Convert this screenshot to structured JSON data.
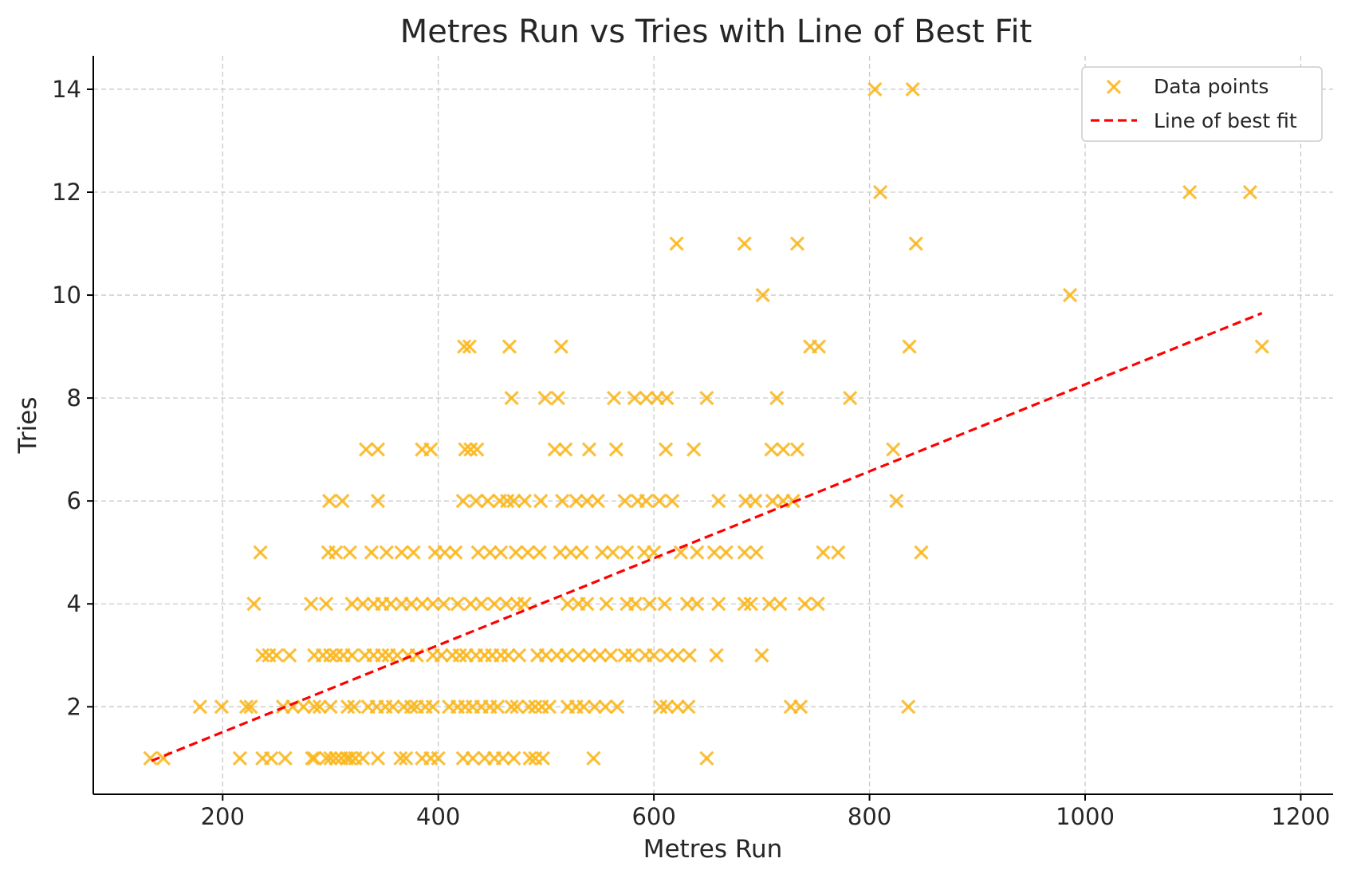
{
  "chart_data": {
    "type": "scatter",
    "title": "Metres Run vs Tries with Line of Best Fit",
    "xlabel": "Metres Run",
    "ylabel": "Tries",
    "xlim": [
      80,
      1230
    ],
    "ylim": [
      0.3,
      14.65
    ],
    "xticks": [
      200,
      400,
      600,
      800,
      1000,
      1200
    ],
    "yticks": [
      2,
      4,
      6,
      8,
      10,
      12,
      14
    ],
    "grid": true,
    "legend_position": "top-right",
    "colors": {
      "points": "#fbb619",
      "fit": "#ff0000"
    },
    "series": [
      {
        "name": "Data points",
        "marker": "x",
        "points": [
          [
            133,
            1
          ],
          [
            145,
            1
          ],
          [
            216,
            1
          ],
          [
            237,
            1
          ],
          [
            245,
            1
          ],
          [
            258,
            1
          ],
          [
            283,
            1
          ],
          [
            285,
            1
          ],
          [
            296,
            1
          ],
          [
            300,
            1
          ],
          [
            305,
            1
          ],
          [
            310,
            1
          ],
          [
            315,
            1
          ],
          [
            318,
            1
          ],
          [
            323,
            1
          ],
          [
            330,
            1
          ],
          [
            344,
            1
          ],
          [
            365,
            1
          ],
          [
            370,
            1
          ],
          [
            385,
            1
          ],
          [
            393,
            1
          ],
          [
            400,
            1
          ],
          [
            423,
            1
          ],
          [
            432,
            1
          ],
          [
            443,
            1
          ],
          [
            452,
            1
          ],
          [
            460,
            1
          ],
          [
            470,
            1
          ],
          [
            485,
            1
          ],
          [
            490,
            1
          ],
          [
            497,
            1
          ],
          [
            544,
            1
          ],
          [
            649,
            1
          ],
          [
            179,
            2
          ],
          [
            199,
            2
          ],
          [
            222,
            2
          ],
          [
            226,
            2
          ],
          [
            256,
            2
          ],
          [
            265,
            2
          ],
          [
            275,
            2
          ],
          [
            285,
            2
          ],
          [
            290,
            2
          ],
          [
            300,
            2
          ],
          [
            316,
            2
          ],
          [
            322,
            2
          ],
          [
            335,
            2
          ],
          [
            343,
            2
          ],
          [
            351,
            2
          ],
          [
            358,
            2
          ],
          [
            368,
            2
          ],
          [
            375,
            2
          ],
          [
            380,
            2
          ],
          [
            388,
            2
          ],
          [
            395,
            2
          ],
          [
            410,
            2
          ],
          [
            418,
            2
          ],
          [
            425,
            2
          ],
          [
            432,
            2
          ],
          [
            440,
            2
          ],
          [
            448,
            2
          ],
          [
            455,
            2
          ],
          [
            468,
            2
          ],
          [
            473,
            2
          ],
          [
            484,
            2
          ],
          [
            490,
            2
          ],
          [
            496,
            2
          ],
          [
            503,
            2
          ],
          [
            520,
            2
          ],
          [
            528,
            2
          ],
          [
            535,
            2
          ],
          [
            545,
            2
          ],
          [
            555,
            2
          ],
          [
            566,
            2
          ],
          [
            606,
            2
          ],
          [
            612,
            2
          ],
          [
            622,
            2
          ],
          [
            632,
            2
          ],
          [
            727,
            2
          ],
          [
            736,
            2
          ],
          [
            836,
            2
          ],
          [
            237,
            3
          ],
          [
            243,
            3
          ],
          [
            250,
            3
          ],
          [
            262,
            3
          ],
          [
            285,
            3
          ],
          [
            293,
            3
          ],
          [
            300,
            3
          ],
          [
            305,
            3
          ],
          [
            312,
            3
          ],
          [
            320,
            3
          ],
          [
            332,
            3
          ],
          [
            340,
            3
          ],
          [
            348,
            3
          ],
          [
            354,
            3
          ],
          [
            362,
            3
          ],
          [
            372,
            3
          ],
          [
            380,
            3
          ],
          [
            395,
            3
          ],
          [
            403,
            3
          ],
          [
            413,
            3
          ],
          [
            420,
            3
          ],
          [
            426,
            3
          ],
          [
            435,
            3
          ],
          [
            443,
            3
          ],
          [
            450,
            3
          ],
          [
            458,
            3
          ],
          [
            465,
            3
          ],
          [
            475,
            3
          ],
          [
            492,
            3
          ],
          [
            500,
            3
          ],
          [
            510,
            3
          ],
          [
            519,
            3
          ],
          [
            530,
            3
          ],
          [
            540,
            3
          ],
          [
            550,
            3
          ],
          [
            560,
            3
          ],
          [
            573,
            3
          ],
          [
            580,
            3
          ],
          [
            592,
            3
          ],
          [
            600,
            3
          ],
          [
            612,
            3
          ],
          [
            622,
            3
          ],
          [
            633,
            3
          ],
          [
            658,
            3
          ],
          [
            700,
            3
          ],
          [
            229,
            4
          ],
          [
            282,
            4
          ],
          [
            296,
            4
          ],
          [
            320,
            4
          ],
          [
            330,
            4
          ],
          [
            340,
            4
          ],
          [
            348,
            4
          ],
          [
            356,
            4
          ],
          [
            366,
            4
          ],
          [
            375,
            4
          ],
          [
            385,
            4
          ],
          [
            395,
            4
          ],
          [
            405,
            4
          ],
          [
            418,
            4
          ],
          [
            430,
            4
          ],
          [
            440,
            4
          ],
          [
            452,
            4
          ],
          [
            463,
            4
          ],
          [
            473,
            4
          ],
          [
            480,
            4
          ],
          [
            520,
            4
          ],
          [
            530,
            4
          ],
          [
            538,
            4
          ],
          [
            556,
            4
          ],
          [
            575,
            4
          ],
          [
            583,
            4
          ],
          [
            596,
            4
          ],
          [
            610,
            4
          ],
          [
            631,
            4
          ],
          [
            640,
            4
          ],
          [
            660,
            4
          ],
          [
            684,
            4
          ],
          [
            690,
            4
          ],
          [
            707,
            4
          ],
          [
            717,
            4
          ],
          [
            740,
            4
          ],
          [
            752,
            4
          ],
          [
            235,
            5
          ],
          [
            298,
            5
          ],
          [
            305,
            5
          ],
          [
            318,
            5
          ],
          [
            338,
            5
          ],
          [
            352,
            5
          ],
          [
            366,
            5
          ],
          [
            377,
            5
          ],
          [
            397,
            5
          ],
          [
            406,
            5
          ],
          [
            416,
            5
          ],
          [
            437,
            5
          ],
          [
            448,
            5
          ],
          [
            458,
            5
          ],
          [
            472,
            5
          ],
          [
            483,
            5
          ],
          [
            494,
            5
          ],
          [
            513,
            5
          ],
          [
            523,
            5
          ],
          [
            533,
            5
          ],
          [
            552,
            5
          ],
          [
            562,
            5
          ],
          [
            575,
            5
          ],
          [
            591,
            5
          ],
          [
            600,
            5
          ],
          [
            625,
            5
          ],
          [
            640,
            5
          ],
          [
            656,
            5
          ],
          [
            667,
            5
          ],
          [
            684,
            5
          ],
          [
            695,
            5
          ],
          [
            757,
            5
          ],
          [
            771,
            5
          ],
          [
            848,
            5
          ],
          [
            299,
            6
          ],
          [
            311,
            6
          ],
          [
            344,
            6
          ],
          [
            423,
            6
          ],
          [
            435,
            6
          ],
          [
            446,
            6
          ],
          [
            457,
            6
          ],
          [
            464,
            6
          ],
          [
            470,
            6
          ],
          [
            480,
            6
          ],
          [
            495,
            6
          ],
          [
            515,
            6
          ],
          [
            528,
            6
          ],
          [
            538,
            6
          ],
          [
            548,
            6
          ],
          [
            573,
            6
          ],
          [
            585,
            6
          ],
          [
            593,
            6
          ],
          [
            605,
            6
          ],
          [
            617,
            6
          ],
          [
            660,
            6
          ],
          [
            685,
            6
          ],
          [
            694,
            6
          ],
          [
            710,
            6
          ],
          [
            720,
            6
          ],
          [
            729,
            6
          ],
          [
            825,
            6
          ],
          [
            333,
            7
          ],
          [
            344,
            7
          ],
          [
            385,
            7
          ],
          [
            393,
            7
          ],
          [
            425,
            7
          ],
          [
            430,
            7
          ],
          [
            436,
            7
          ],
          [
            508,
            7
          ],
          [
            518,
            7
          ],
          [
            540,
            7
          ],
          [
            565,
            7
          ],
          [
            611,
            7
          ],
          [
            637,
            7
          ],
          [
            709,
            7
          ],
          [
            720,
            7
          ],
          [
            733,
            7
          ],
          [
            822,
            7
          ],
          [
            468,
            8
          ],
          [
            499,
            8
          ],
          [
            511,
            8
          ],
          [
            563,
            8
          ],
          [
            582,
            8
          ],
          [
            593,
            8
          ],
          [
            603,
            8
          ],
          [
            612,
            8
          ],
          [
            649,
            8
          ],
          [
            714,
            8
          ],
          [
            782,
            8
          ],
          [
            424,
            9
          ],
          [
            429,
            9
          ],
          [
            466,
            9
          ],
          [
            514,
            9
          ],
          [
            745,
            9
          ],
          [
            753,
            9
          ],
          [
            837,
            9
          ],
          [
            1164,
            9
          ],
          [
            701,
            10
          ],
          [
            986,
            10
          ],
          [
            621,
            11
          ],
          [
            684,
            11
          ],
          [
            733,
            11
          ],
          [
            843,
            11
          ],
          [
            810,
            12
          ],
          [
            1097,
            12
          ],
          [
            1153,
            12
          ],
          [
            805,
            14
          ],
          [
            840,
            14
          ]
        ]
      },
      {
        "name": "Line of best fit",
        "line_style": "dashed",
        "points": [
          [
            134,
            0.95
          ],
          [
            1164,
            9.65
          ]
        ]
      }
    ]
  }
}
